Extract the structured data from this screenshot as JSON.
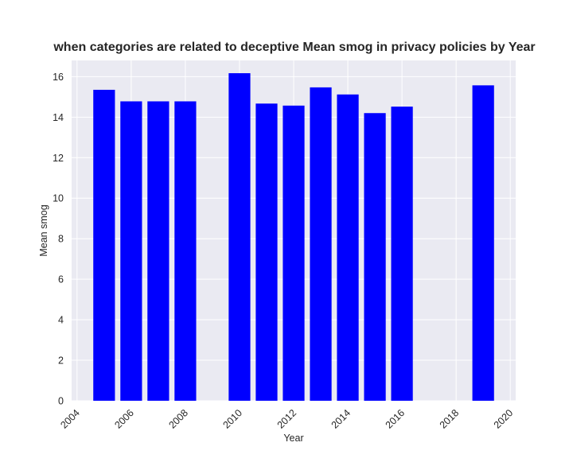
{
  "chart_data": {
    "type": "bar",
    "title": "when categories are related to deceptive Mean smog in privacy policies by Year",
    "xlabel": "Year",
    "ylabel": "Mean smog",
    "x": [
      2005,
      2006,
      2007,
      2008,
      2010,
      2011,
      2012,
      2013,
      2014,
      2015,
      2016,
      2019
    ],
    "values": [
      15.35,
      14.78,
      14.78,
      14.78,
      16.17,
      14.67,
      14.57,
      15.47,
      15.12,
      14.2,
      14.52,
      15.57
    ],
    "xlim": [
      2003.8,
      2020.2
    ],
    "ylim": [
      0,
      16.8
    ],
    "xticks": [
      2004,
      2006,
      2008,
      2010,
      2012,
      2014,
      2016,
      2018,
      2020
    ],
    "yticks": [
      0,
      2,
      4,
      6,
      8,
      10,
      12,
      14,
      16
    ],
    "bar_width_years": 0.8,
    "grid": true,
    "bar_color": "#0000ff",
    "plot_background": "#eaeaf2",
    "grid_color": "#ffffff"
  }
}
